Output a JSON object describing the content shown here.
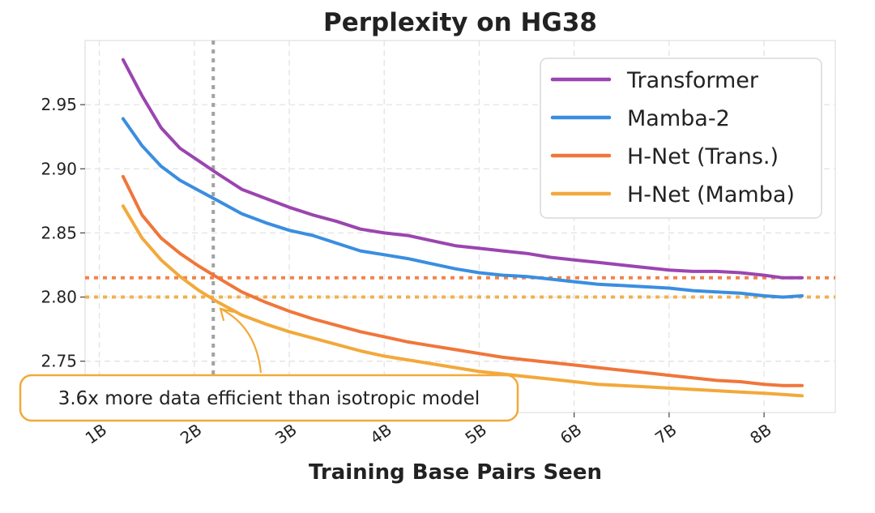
{
  "chart_data": {
    "type": "line",
    "title": "Perplexity on HG38",
    "xlabel": "Training Base Pairs Seen",
    "ylabel": "",
    "xlim": [
      0.85,
      8.75
    ],
    "ylim": [
      2.71,
      3.0
    ],
    "x_ticks": [
      1,
      2,
      3,
      4,
      5,
      6,
      7,
      8
    ],
    "x_tick_labels": [
      "1B",
      "2B",
      "3B",
      "4B",
      "5B",
      "6B",
      "7B",
      "8B"
    ],
    "y_ticks": [
      2.75,
      2.8,
      2.85,
      2.9,
      2.95
    ],
    "y_tick_labels": [
      "2.75",
      "2.80",
      "2.85",
      "2.90",
      "2.95"
    ],
    "grid": true,
    "legend_position": "top-right",
    "series": [
      {
        "name": "Transformer",
        "color": "#9b45b0",
        "x": [
          1.25,
          1.45,
          1.65,
          1.85,
          2.05,
          2.25,
          2.5,
          2.75,
          3.0,
          3.25,
          3.5,
          3.75,
          4.0,
          4.25,
          4.5,
          4.75,
          5.0,
          5.25,
          5.5,
          5.75,
          6.0,
          6.25,
          6.5,
          6.75,
          7.0,
          7.25,
          7.5,
          7.75,
          8.0,
          8.2,
          8.4
        ],
        "values": [
          2.985,
          2.957,
          2.932,
          2.916,
          2.906,
          2.896,
          2.884,
          2.877,
          2.87,
          2.864,
          2.859,
          2.853,
          2.85,
          2.848,
          2.844,
          2.84,
          2.838,
          2.836,
          2.834,
          2.831,
          2.829,
          2.827,
          2.825,
          2.823,
          2.821,
          2.82,
          2.82,
          2.819,
          2.817,
          2.815,
          2.815
        ]
      },
      {
        "name": "Mamba-2",
        "color": "#3a8ee0",
        "x": [
          1.25,
          1.45,
          1.65,
          1.85,
          2.05,
          2.25,
          2.5,
          2.75,
          3.0,
          3.25,
          3.5,
          3.75,
          4.0,
          4.25,
          4.5,
          4.75,
          5.0,
          5.25,
          5.5,
          5.75,
          6.0,
          6.25,
          6.5,
          6.75,
          7.0,
          7.25,
          7.5,
          7.75,
          8.0,
          8.2,
          8.4
        ],
        "values": [
          2.939,
          2.918,
          2.902,
          2.891,
          2.883,
          2.875,
          2.865,
          2.858,
          2.852,
          2.848,
          2.842,
          2.836,
          2.833,
          2.83,
          2.826,
          2.822,
          2.819,
          2.817,
          2.816,
          2.814,
          2.812,
          2.81,
          2.809,
          2.808,
          2.807,
          2.805,
          2.804,
          2.803,
          2.801,
          2.8,
          2.801
        ]
      },
      {
        "name": "H-Net (Trans.)",
        "color": "#f0763a",
        "x": [
          1.25,
          1.45,
          1.65,
          1.85,
          2.05,
          2.25,
          2.5,
          2.75,
          3.0,
          3.25,
          3.5,
          3.75,
          4.0,
          4.25,
          4.5,
          4.75,
          5.0,
          5.25,
          5.5,
          5.75,
          6.0,
          6.25,
          6.5,
          6.75,
          7.0,
          7.25,
          7.5,
          7.75,
          8.0,
          8.2,
          8.4
        ],
        "values": [
          2.894,
          2.864,
          2.846,
          2.834,
          2.824,
          2.815,
          2.804,
          2.796,
          2.789,
          2.783,
          2.778,
          2.773,
          2.769,
          2.765,
          2.762,
          2.759,
          2.756,
          2.753,
          2.751,
          2.749,
          2.747,
          2.745,
          2.743,
          2.741,
          2.739,
          2.737,
          2.735,
          2.734,
          2.732,
          2.731,
          2.731
        ]
      },
      {
        "name": "H-Net (Mamba)",
        "color": "#f2a93b",
        "x": [
          1.25,
          1.45,
          1.65,
          1.85,
          2.05,
          2.25,
          2.5,
          2.75,
          3.0,
          3.25,
          3.5,
          3.75,
          4.0,
          4.25,
          4.5,
          4.75,
          5.0,
          5.25,
          5.5,
          5.75,
          6.0,
          6.25,
          6.5,
          6.75,
          7.0,
          7.25,
          7.5,
          7.75,
          8.0,
          8.2,
          8.4
        ],
        "values": [
          2.871,
          2.846,
          2.829,
          2.816,
          2.805,
          2.796,
          2.786,
          2.779,
          2.773,
          2.768,
          2.763,
          2.758,
          2.754,
          2.751,
          2.748,
          2.745,
          2.742,
          2.74,
          2.738,
          2.736,
          2.734,
          2.732,
          2.731,
          2.73,
          2.729,
          2.728,
          2.727,
          2.726,
          2.725,
          2.724,
          2.723
        ]
      }
    ],
    "reference_lines": [
      {
        "orientation": "horizontal",
        "value": 2.815,
        "color": "#f0763a",
        "style": "dotted"
      },
      {
        "orientation": "horizontal",
        "value": 2.8,
        "color": "#f2a93b",
        "style": "dotted"
      },
      {
        "orientation": "vertical",
        "value": 2.2,
        "color": "#999999",
        "style": "dotted"
      }
    ],
    "annotation": {
      "text": "3.6x more data efficient than isotropic model",
      "arrow_target": {
        "x": 2.25,
        "y": 2.796
      },
      "color": "#f2a93b"
    }
  }
}
